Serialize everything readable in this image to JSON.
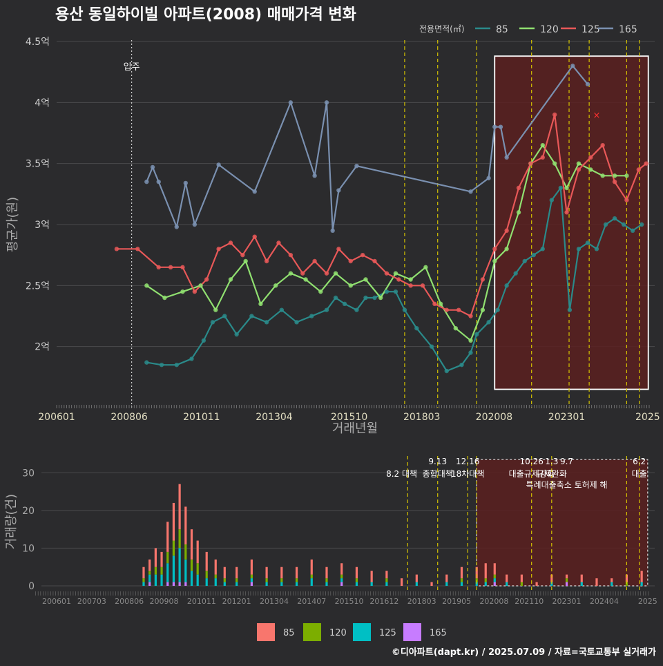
{
  "title": "용산 동일하이빌 아파트(2008) 매매가격 변화",
  "footer": "©디아파트(dapt.kr) / 2025.07.09 / 자료=국토교통부 실거래가",
  "colors": {
    "background": "#2b2b2d",
    "grid": "#4a4a4c",
    "text": "#dddddd",
    "axis_text": "#cfcfcf",
    "policy_line": "#d6c400",
    "highlight_fill": "#5a2020",
    "s85": "#2a8a8a",
    "s120": "#90e070",
    "s125": "#e85858",
    "s165": "#7a90b0",
    "v85": "#f8766d",
    "v120": "#7cae00",
    "v125": "#00bfc4",
    "v165": "#c77cff"
  },
  "chart_data": [
    {
      "type": "line",
      "ylabel": "평균가(원)",
      "xlabel": "거래년월",
      "ylim": [
        1.5,
        4.5
      ],
      "y_ticks": [
        {
          "v": 2,
          "label": "2억"
        },
        {
          "v": 2.5,
          "label": "2.5억"
        },
        {
          "v": 3,
          "label": "3억"
        },
        {
          "v": 3.5,
          "label": "3.5억"
        },
        {
          "v": 4,
          "label": "4억"
        },
        {
          "v": 4.5,
          "label": "4.5억"
        }
      ],
      "x_ticks": [
        "200601",
        "200806",
        "201011",
        "201304",
        "201510",
        "201803",
        "202008",
        "202301",
        "2025"
      ],
      "legend_title": "전용면적(㎡)",
      "legend_position": "top-right",
      "move_in_label": "입주",
      "move_in_x": 2008.5,
      "policy_lines": [
        2017.6,
        2018.7,
        2020.0,
        2021.83,
        2023.08,
        2023.75,
        2025.0,
        2025.42
      ],
      "highlight": {
        "x0": 2020.6,
        "x1": 2025.72,
        "y0": 1.65,
        "y1": 4.38
      },
      "marker": {
        "x": 2024.0,
        "y": 3.9,
        "label": "×"
      },
      "series": [
        {
          "name": "85",
          "x": [
            2009.0,
            2009.5,
            2010.0,
            2010.5,
            2010.9,
            2011.2,
            2011.6,
            2012.0,
            2012.5,
            2013.0,
            2013.5,
            2014.0,
            2014.5,
            2015.0,
            2015.3,
            2015.6,
            2016.0,
            2016.3,
            2016.6,
            2017.0,
            2017.3,
            2017.6,
            2018.0,
            2018.5,
            2019.0,
            2019.5,
            2019.8,
            2020.0,
            2020.4,
            2020.7,
            2021.0,
            2021.3,
            2021.6,
            2021.9,
            2022.2,
            2022.5,
            2022.8,
            2023.1,
            2023.4,
            2023.7,
            2024.0,
            2024.3,
            2024.6,
            2024.9,
            2025.2,
            2025.5
          ],
          "y": [
            1.87,
            1.85,
            1.85,
            1.9,
            2.05,
            2.2,
            2.25,
            2.1,
            2.25,
            2.2,
            2.3,
            2.2,
            2.25,
            2.3,
            2.4,
            2.35,
            2.3,
            2.4,
            2.4,
            2.45,
            2.45,
            2.3,
            2.15,
            2.0,
            1.8,
            1.85,
            1.95,
            2.1,
            2.2,
            2.3,
            2.5,
            2.6,
            2.7,
            2.75,
            2.8,
            3.2,
            3.3,
            2.3,
            2.8,
            2.85,
            2.8,
            3.0,
            3.05,
            3.0,
            2.95,
            3.0
          ]
        },
        {
          "name": "120",
          "x": [
            2009.0,
            2009.6,
            2010.2,
            2010.8,
            2011.3,
            2011.8,
            2012.3,
            2012.8,
            2013.3,
            2013.8,
            2014.3,
            2014.8,
            2015.3,
            2015.8,
            2016.3,
            2016.8,
            2017.3,
            2017.8,
            2018.3,
            2018.8,
            2019.3,
            2019.8,
            2020.2,
            2020.6,
            2021.0,
            2021.4,
            2021.8,
            2022.2,
            2022.6,
            2023.0,
            2023.4,
            2023.8,
            2024.2,
            2024.6,
            2025.0
          ],
          "y": [
            2.5,
            2.4,
            2.45,
            2.5,
            2.3,
            2.55,
            2.7,
            2.35,
            2.5,
            2.6,
            2.55,
            2.45,
            2.6,
            2.5,
            2.55,
            2.4,
            2.6,
            2.55,
            2.65,
            2.35,
            2.15,
            2.05,
            2.3,
            2.7,
            2.8,
            3.1,
            3.5,
            3.65,
            3.5,
            3.3,
            3.5,
            3.45,
            3.4,
            3.4,
            3.4
          ]
        },
        {
          "name": "125",
          "x": [
            2008.0,
            2008.7,
            2009.4,
            2009.8,
            2010.2,
            2010.6,
            2011.0,
            2011.4,
            2011.8,
            2012.2,
            2012.6,
            2013.0,
            2013.4,
            2013.8,
            2014.2,
            2014.6,
            2015.0,
            2015.4,
            2015.8,
            2016.2,
            2016.6,
            2017.0,
            2017.4,
            2017.8,
            2018.2,
            2018.6,
            2019.0,
            2019.4,
            2019.8,
            2020.2,
            2020.6,
            2021.0,
            2021.4,
            2021.8,
            2022.2,
            2022.6,
            2023.0,
            2023.4,
            2023.8,
            2024.2,
            2024.6,
            2025.0,
            2025.4,
            2025.65
          ],
          "y": [
            2.8,
            2.8,
            2.65,
            2.65,
            2.65,
            2.45,
            2.55,
            2.8,
            2.85,
            2.75,
            2.9,
            2.7,
            2.85,
            2.75,
            2.6,
            2.7,
            2.6,
            2.8,
            2.7,
            2.75,
            2.7,
            2.6,
            2.55,
            2.5,
            2.5,
            2.35,
            2.3,
            2.3,
            2.25,
            2.55,
            2.8,
            2.95,
            3.3,
            3.5,
            3.55,
            3.9,
            3.1,
            3.45,
            3.55,
            3.65,
            3.35,
            3.2,
            3.45,
            3.5
          ]
        },
        {
          "name": "165",
          "x": [
            2009.0,
            2009.2,
            2009.4,
            2010.0,
            2010.3,
            2010.6,
            2011.4,
            2012.6,
            2013.8,
            2014.6,
            2015.0,
            2015.2,
            2015.4,
            2016.0,
            2019.8,
            2020.4,
            2020.6,
            2020.8,
            2021.0,
            2023.2,
            2023.7
          ],
          "y": [
            3.35,
            3.47,
            3.35,
            2.98,
            3.34,
            3.0,
            3.49,
            3.27,
            4.0,
            3.4,
            4.0,
            2.95,
            3.28,
            3.48,
            3.27,
            3.38,
            3.8,
            3.8,
            3.55,
            4.3,
            4.15
          ]
        }
      ]
    },
    {
      "type": "bar",
      "stacked": true,
      "ylabel": "거래량(건)",
      "ylim": [
        0,
        35
      ],
      "y_ticks": [
        0,
        10,
        20,
        30
      ],
      "x_ticks": [
        "200601",
        "200703",
        "200806",
        "200908",
        "201011",
        "201201",
        "201304",
        "201407",
        "201510",
        "201612",
        "201803",
        "201905",
        "202008",
        "202110",
        "202301",
        "202404",
        "2025"
      ],
      "legend_position": "bottom",
      "policy_lines": [
        2017.7,
        2018.7,
        2019.7,
        2020.0,
        2021.83,
        2022.5,
        2025.0,
        2025.42
      ],
      "highlight": {
        "x0": 2020.0,
        "x1": 2025.7,
        "y0": 0,
        "y1": 33.5
      },
      "policies": [
        {
          "x": 2017.5,
          "line1": "",
          "line2": "8.2 대책"
        },
        {
          "x": 2018.7,
          "line1": "9.13",
          "line2": "종합대책"
        },
        {
          "x": 2019.7,
          "line1": "12.16",
          "line2": "18차대책"
        },
        {
          "x": 2021.83,
          "line1": "10.26",
          "line2": "대출규제강화"
        },
        {
          "x": 2022.5,
          "line1": "1.3",
          "line2": "규제완화"
        },
        {
          "x": 2023.0,
          "line1": "9.7",
          "line2": "특례대출축소 토허제 해"
        },
        {
          "x": 2025.42,
          "line1": "6.2",
          "line2": "대출"
        }
      ],
      "series": [
        {
          "name": "85",
          "x": [
            2008.9,
            2009.1,
            2009.3,
            2009.5,
            2009.7,
            2009.9,
            2010.1,
            2010.3,
            2010.5,
            2010.7,
            2011.0,
            2011.3,
            2011.6,
            2012.0,
            2012.5,
            2013.0,
            2013.5,
            2014.0,
            2014.5,
            2015.0,
            2015.5,
            2016.0,
            2016.5,
            2017.0,
            2017.5,
            2018.0,
            2018.5,
            2019.0,
            2019.5,
            2020.0,
            2020.3,
            2020.6,
            2021.0,
            2021.5,
            2022.0,
            2022.5,
            2023.0,
            2023.5,
            2024.0,
            2024.5,
            2025.0,
            2025.5
          ],
          "values": [
            3,
            3,
            5,
            4,
            8,
            10,
            12,
            10,
            8,
            6,
            5,
            4,
            3,
            3,
            4,
            3,
            3,
            3,
            4,
            3,
            3,
            3,
            3,
            2,
            2,
            2,
            1,
            2,
            3,
            3,
            4,
            3,
            2,
            2,
            1,
            2,
            1,
            2,
            2,
            1,
            2,
            3
          ]
        },
        {
          "name": "120",
          "x": [
            2008.9,
            2009.1,
            2009.3,
            2009.5,
            2009.7,
            2009.9,
            2010.1,
            2010.3,
            2010.5,
            2010.7,
            2011.0,
            2011.3,
            2011.6,
            2012.0,
            2012.5,
            2013.0,
            2013.5,
            2014.0,
            2014.5,
            2015.0,
            2015.5,
            2016.0,
            2016.5,
            2017.0,
            2017.5,
            2018.0,
            2018.5,
            2019.0,
            2019.5,
            2020.0,
            2020.3,
            2020.6,
            2021.0,
            2021.5,
            2022.0,
            2022.5,
            2023.0,
            2023.5,
            2024.0,
            2024.5,
            2025.0,
            2025.5
          ],
          "values": [
            1,
            1,
            2,
            2,
            3,
            4,
            5,
            4,
            3,
            3,
            2,
            1,
            1,
            1,
            1,
            1,
            1,
            1,
            1,
            1,
            1,
            1,
            0,
            1,
            0,
            0,
            0,
            0,
            1,
            1,
            1,
            1,
            0,
            1,
            0,
            0,
            1,
            0,
            0,
            0,
            1,
            0
          ]
        },
        {
          "name": "125",
          "x": [
            2008.9,
            2009.1,
            2009.3,
            2009.5,
            2009.7,
            2009.9,
            2010.1,
            2010.3,
            2010.5,
            2010.7,
            2011.0,
            2011.3,
            2011.6,
            2012.0,
            2012.5,
            2013.0,
            2013.5,
            2014.0,
            2014.5,
            2015.0,
            2015.5,
            2016.0,
            2016.5,
            2017.0,
            2017.5,
            2018.0,
            2018.5,
            2019.0,
            2019.5,
            2020.0,
            2020.3,
            2020.6,
            2021.0,
            2021.5,
            2022.0,
            2022.5,
            2023.0,
            2023.5,
            2024.0,
            2024.5,
            2025.0,
            2025.5
          ],
          "values": [
            1,
            2,
            3,
            3,
            5,
            7,
            9,
            6,
            4,
            3,
            2,
            2,
            1,
            1,
            1,
            1,
            1,
            1,
            2,
            1,
            1,
            1,
            1,
            1,
            0,
            1,
            0,
            1,
            1,
            1,
            1,
            1,
            1,
            0,
            0,
            1,
            0,
            1,
            0,
            1,
            0,
            1
          ]
        },
        {
          "name": "165",
          "x": [
            2008.9,
            2009.1,
            2009.3,
            2009.5,
            2009.7,
            2009.9,
            2010.1,
            2010.3,
            2010.5,
            2010.7,
            2011.0,
            2011.3,
            2011.6,
            2012.0,
            2012.5,
            2013.0,
            2013.5,
            2014.0,
            2014.5,
            2015.0,
            2015.5,
            2016.0,
            2016.5,
            2017.0,
            2017.5,
            2018.0,
            2018.5,
            2019.0,
            2019.5,
            2020.0,
            2020.3,
            2020.6,
            2021.0,
            2021.5,
            2022.0,
            2022.5,
            2023.0,
            2023.5,
            2024.0,
            2024.5,
            2025.0,
            2025.5
          ],
          "values": [
            0,
            1,
            0,
            0,
            1,
            1,
            1,
            1,
            0,
            0,
            0,
            0,
            0,
            0,
            1,
            0,
            0,
            0,
            0,
            0,
            1,
            0,
            0,
            0,
            0,
            0,
            0,
            0,
            0,
            0,
            0,
            1,
            0,
            0,
            0,
            0,
            1,
            0,
            0,
            0,
            0,
            0
          ]
        }
      ]
    }
  ]
}
